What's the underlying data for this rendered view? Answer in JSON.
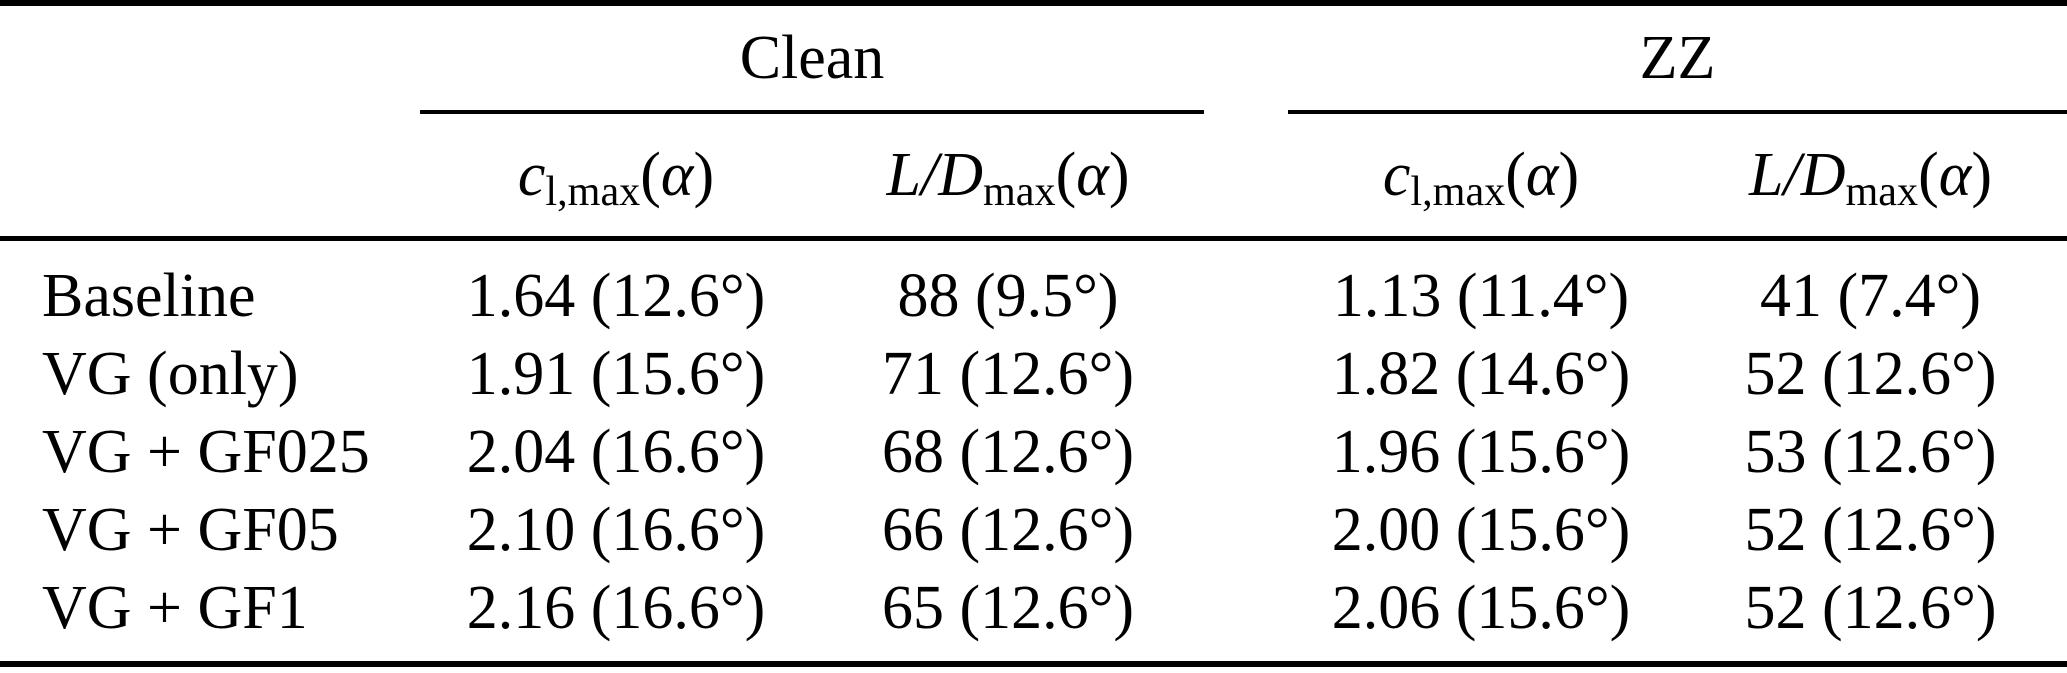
{
  "table": {
    "group_headers": {
      "clean": "Clean",
      "zz": "ZZ"
    },
    "column_headers": {
      "cl": {
        "var": "c",
        "sub": "l,max",
        "paren_open": "(",
        "alpha": "α",
        "paren_close": ")"
      },
      "ld": {
        "var": "L/D",
        "sub": "max",
        "paren_open": "(",
        "alpha": "α",
        "paren_close": ")"
      }
    },
    "rows": [
      {
        "label": "Baseline",
        "clean_cl": "1.64 (12.6°)",
        "clean_ld": "88 (9.5°)",
        "zz_cl": "1.13 (11.4°)",
        "zz_ld": "41 (7.4°)"
      },
      {
        "label": "VG (only)",
        "clean_cl": "1.91 (15.6°)",
        "clean_ld": "71 (12.6°)",
        "zz_cl": "1.82 (14.6°)",
        "zz_ld": "52 (12.6°)"
      },
      {
        "label": "VG + GF025",
        "clean_cl": "2.04 (16.6°)",
        "clean_ld": "68 (12.6°)",
        "zz_cl": "1.96 (15.6°)",
        "zz_ld": "53 (12.6°)"
      },
      {
        "label": "VG + GF05",
        "clean_cl": "2.10 (16.6°)",
        "clean_ld": "66 (12.6°)",
        "zz_cl": "2.00 (15.6°)",
        "zz_ld": "52 (12.6°)"
      },
      {
        "label": "VG + GF1",
        "clean_cl": "2.16 (16.6°)",
        "clean_ld": "65 (12.6°)",
        "zz_cl": "2.06 (15.6°)",
        "zz_ld": "52 (12.6°)"
      }
    ]
  },
  "colors": {
    "text": "#000000",
    "background": "#ffffff",
    "rules": "#000000"
  }
}
